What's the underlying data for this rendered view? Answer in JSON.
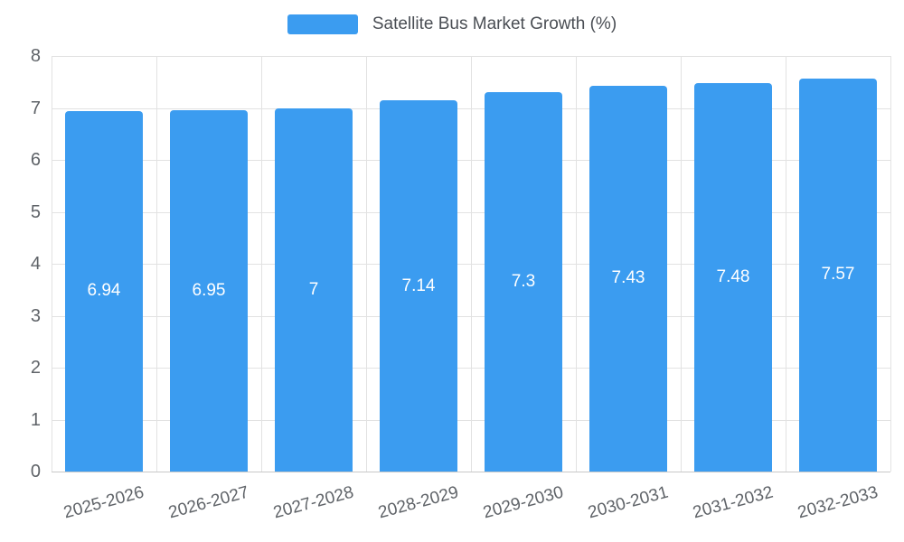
{
  "legend": {
    "label": "Satellite Bus Market Growth (%)"
  },
  "colors": {
    "bar": "#3b9cf0",
    "bar_label": "#ffffff",
    "grid": "#e2e2e2",
    "axis": "#c9c9c9",
    "tick_text": "#5f6368"
  },
  "chart_data": {
    "type": "bar",
    "title": "Satellite Bus Market Growth (%)",
    "categories": [
      "2025-2026",
      "2026-2027",
      "2027-2028",
      "2028-2029",
      "2029-2030",
      "2030-2031",
      "2031-2032",
      "2032-2033"
    ],
    "values": [
      6.94,
      6.95,
      7,
      7.14,
      7.3,
      7.43,
      7.48,
      7.57
    ],
    "value_labels": [
      "6.94",
      "6.95",
      "7",
      "7.14",
      "7.3",
      "7.43",
      "7.48",
      "7.57"
    ],
    "xlabel": "",
    "ylabel": "",
    "ylim": [
      0,
      8
    ],
    "yticks": [
      0,
      1,
      2,
      3,
      4,
      5,
      6,
      7,
      8
    ],
    "grid": "on",
    "legend_position": "top",
    "bar_label_position": "center"
  }
}
